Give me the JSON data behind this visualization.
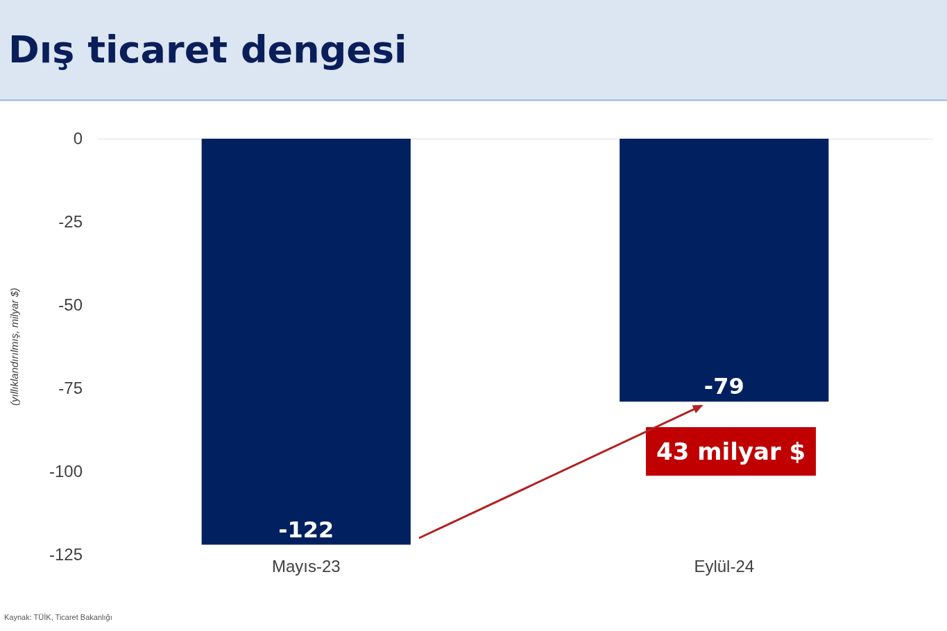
{
  "chart_data": {
    "type": "bar",
    "title": "Dış ticaret dengesi",
    "ylabel": "(yıllıklandırılmış, milyar $)",
    "categories": [
      "Mayıs-23",
      "Eylül-24"
    ],
    "values": [
      -122,
      -79
    ],
    "color": "#002060",
    "data_labels": true,
    "ylim": [
      -125,
      0
    ],
    "yticks": [
      0,
      -25,
      -50,
      -75,
      -100,
      -125
    ],
    "grid": false,
    "annotations": [
      "43 milyar $",
      "Kaynak: TÜİK, Ticaret Bakanlığı"
    ]
  }
}
